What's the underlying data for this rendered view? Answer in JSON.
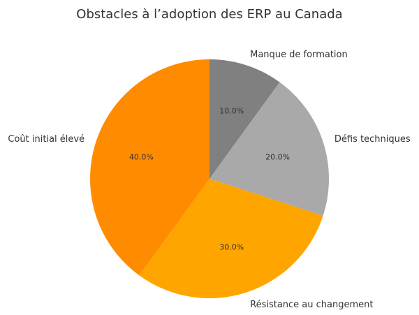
{
  "chart_data": {
    "type": "pie",
    "title": "Obstacles à l’adoption des ERP au Canada",
    "slices": [
      {
        "label": "Manque de formation",
        "value": 10.0,
        "display": "10.0%",
        "color": "#808080"
      },
      {
        "label": "Défis techniques",
        "value": 20.0,
        "display": "20.0%",
        "color": "#a9a9a9"
      },
      {
        "label": "Résistance au changement",
        "value": 30.0,
        "display": "30.0%",
        "color": "#ffa500"
      },
      {
        "label": "Coût initial élevé",
        "value": 40.0,
        "display": "40.0%",
        "color": "#ff8c00"
      }
    ],
    "start_angle": "top",
    "direction": "clockwise"
  }
}
